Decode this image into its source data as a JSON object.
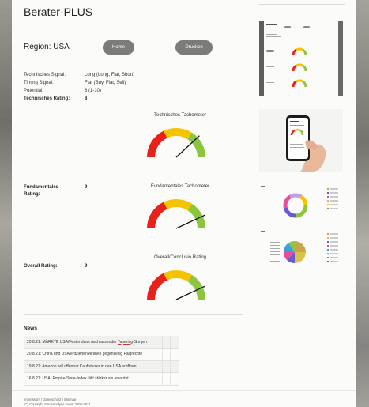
{
  "header": {
    "title": "Berater-PLUS"
  },
  "region": {
    "label": "Region: USA"
  },
  "buttons": {
    "home": "Home",
    "print": "Drucken"
  },
  "signals": [
    {
      "label": "Technisches Signal:",
      "value": "Long (Long, Flat, Short)"
    },
    {
      "label": "Timing Signal:",
      "value": "Flat (Buy, Flat, Sell)"
    },
    {
      "label": "Potential:",
      "value": "8 (1-10)"
    },
    {
      "label": "Technisches Rating:",
      "value": "8"
    }
  ],
  "gauges": [
    {
      "title": "Technisches Tachometer",
      "level": 8
    },
    {
      "title": "Fundamentales Tachometer",
      "level": 9
    },
    {
      "title": "Overall/Conclusio Rating",
      "level": 9
    }
  ],
  "ratings": {
    "fundamental": {
      "label_line1": "Fundamentales",
      "label_line2": "Rating:",
      "value": "9"
    },
    "overall": {
      "label": "Overall Rating:",
      "value": "9"
    }
  },
  "gauge_colors": {
    "red": "#e8211b",
    "yellow": "#f5c400",
    "green": "#8cc63f"
  },
  "news": {
    "heading": "News",
    "items": [
      {
        "date": "20.8.21:",
        "text_pre": "MÄRKTE USA/Fester dank nachlassender ",
        "text_link": "Tapering",
        "text_post": "-Sorgen"
      },
      {
        "date": "20.8.21:",
        "text_pre": "China und USA entziehen Airlines gegenseitig Flugrechte",
        "text_link": "",
        "text_post": ""
      },
      {
        "date": "19.8.21:",
        "text_pre": "Amazon will offenbar Kaufhäuser in den USA eröffnen",
        "text_link": "",
        "text_post": ""
      },
      {
        "date": "16.8.21:",
        "text_pre": "USA: Empire-State-Index fällt stärker als erwartet",
        "text_link": "",
        "text_post": ""
      }
    ]
  },
  "footer": {
    "links": "Impressum | Datenschutz | Sitemap",
    "copyright": "(C) Copyright SinusAnalyse invest 2004-2021"
  }
}
